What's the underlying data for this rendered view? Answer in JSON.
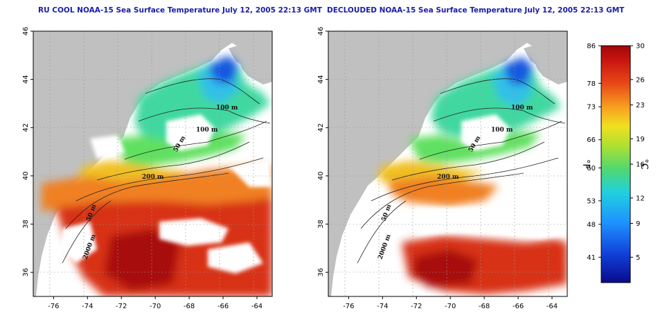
{
  "titles": {
    "left": "RU COOL NOAA-15 Sea Surface Temperature July 12, 2005 22:13 GMT",
    "right": "DECLOUDED NOAA-15 Sea Surface Temperature July 12, 2005 22:13 GMT"
  },
  "axes": {
    "lon_ticks": [
      "-76",
      "-74",
      "-72",
      "-70",
      "-68",
      "-66",
      "-64"
    ],
    "lat_ticks": [
      "36",
      "38",
      "40",
      "42",
      "44",
      "46"
    ],
    "xlim": [
      -77.2,
      -63.1
    ],
    "ylim": [
      35.0,
      46.0
    ]
  },
  "contours": {
    "labels": [
      "100 m",
      "100 m",
      "50 m",
      "200 m",
      "50 m",
      "2000 m"
    ]
  },
  "colorbar": {
    "fahrenheit_ticks": [
      "86",
      "78",
      "73",
      "66",
      "60",
      "53",
      "48",
      "41"
    ],
    "celsius_ticks": [
      "30",
      "26",
      "23",
      "19",
      "16",
      "12",
      "9",
      "5"
    ],
    "unit_f": "°F",
    "unit_c": "°C",
    "range_c": [
      2,
      30
    ]
  },
  "colors": {
    "land": "#c0c0c0",
    "title": "#1c1ca8",
    "warm": "#c81e14",
    "cold": "#1030c8"
  }
}
